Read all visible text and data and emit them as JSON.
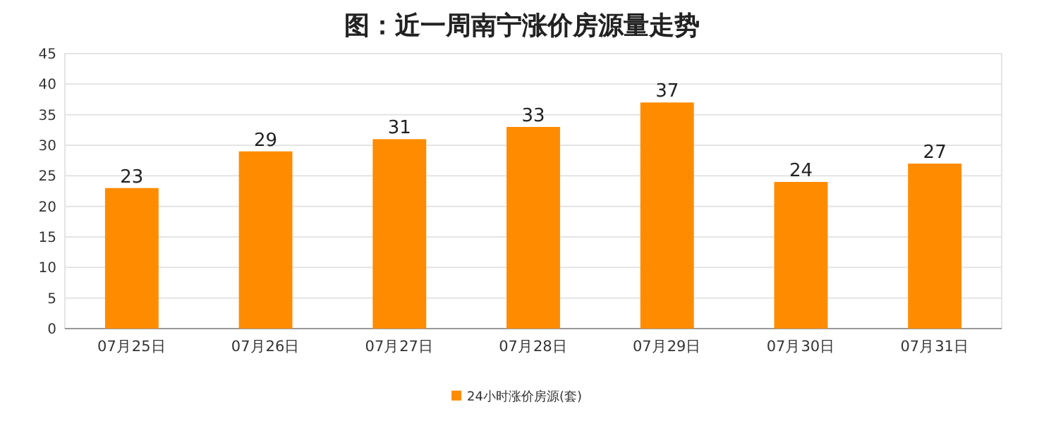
{
  "chart_data": {
    "type": "bar",
    "title": "图：近一周南宁涨价房源量走势",
    "categories": [
      "07月25日",
      "07月26日",
      "07月27日",
      "07月28日",
      "07月29日",
      "07月30日",
      "07月31日"
    ],
    "series": [
      {
        "name": "24小时涨价房源(套)",
        "color": "#ff8c00",
        "values": [
          23,
          29,
          31,
          33,
          37,
          24,
          27
        ]
      }
    ],
    "ylim": [
      0,
      45
    ],
    "yticks": [
      0,
      5,
      10,
      15,
      20,
      25,
      30,
      35,
      40,
      45
    ],
    "grid": "y",
    "legend": "bottom",
    "data_labels": true
  }
}
